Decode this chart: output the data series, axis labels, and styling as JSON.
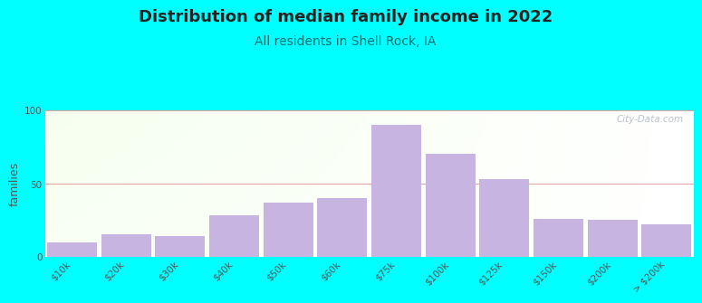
{
  "title": "Distribution of median family income in 2022",
  "subtitle": "All residents in Shell Rock, IA",
  "ylabel": "families",
  "background_color": "#00FFFF",
  "bar_color": "#c8b4e0",
  "categories": [
    "$10k",
    "$20k",
    "$30k",
    "$40k",
    "$50k",
    "$60k",
    "$75k",
    "$100k",
    "$125k",
    "$150k",
    "$200k",
    "> $200k"
  ],
  "values": [
    10,
    15,
    14,
    28,
    37,
    40,
    90,
    70,
    53,
    26,
    25,
    22
  ],
  "ylim": [
    0,
    100
  ],
  "yticks": [
    0,
    50,
    100
  ],
  "watermark": "City-Data.com",
  "title_fontsize": 13,
  "subtitle_fontsize": 10,
  "ylabel_fontsize": 9,
  "tick_fontsize": 7.5,
  "grid_color": "#e09090",
  "subtitle_color": "#007070"
}
